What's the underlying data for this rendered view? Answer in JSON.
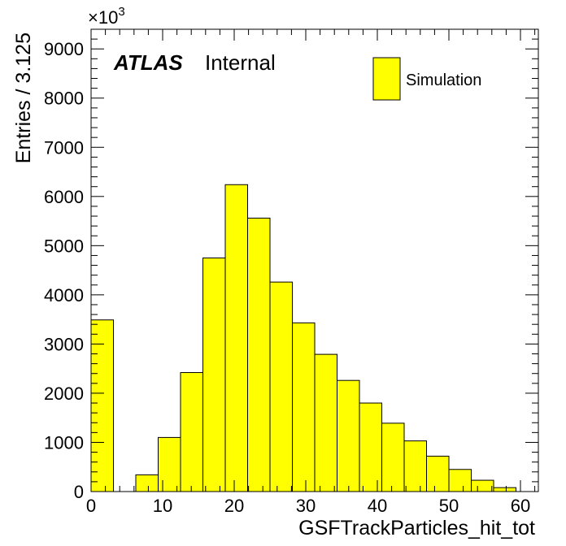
{
  "chart_data": {
    "type": "histogram",
    "xlabel": "GSFTrackParticles_hit_tot",
    "ylabel": "Entries / 3.125",
    "y_multiplier": "×10",
    "y_multiplier_exp": "3",
    "xlim": [
      0,
      62.5
    ],
    "ylim": [
      0,
      9400
    ],
    "bin_width": 3.125,
    "bin_edges_start": 0,
    "values": [
      3490,
      0,
      340,
      1100,
      2420,
      4750,
      6240,
      5560,
      4260,
      3430,
      2790,
      2260,
      1800,
      1390,
      1030,
      720,
      450,
      230,
      80,
      0
    ],
    "x_ticks": [
      0,
      10,
      20,
      30,
      40,
      50,
      60
    ],
    "x_tick_labels": [
      "0",
      "10",
      "20",
      "30",
      "40",
      "50",
      "60"
    ],
    "y_ticks": [
      0,
      1000,
      2000,
      3000,
      4000,
      5000,
      6000,
      7000,
      8000,
      9000
    ],
    "y_tick_labels": [
      "0",
      "1000",
      "2000",
      "3000",
      "4000",
      "5000",
      "6000",
      "7000",
      "8000",
      "9000"
    ],
    "fill_color": "#ffff00",
    "line_color": "#000000",
    "legend": {
      "entries": [
        "Simulation"
      ],
      "position": "top-right"
    },
    "annotations": {
      "experiment": "ATLAS",
      "status": "Internal"
    },
    "grid": false
  }
}
